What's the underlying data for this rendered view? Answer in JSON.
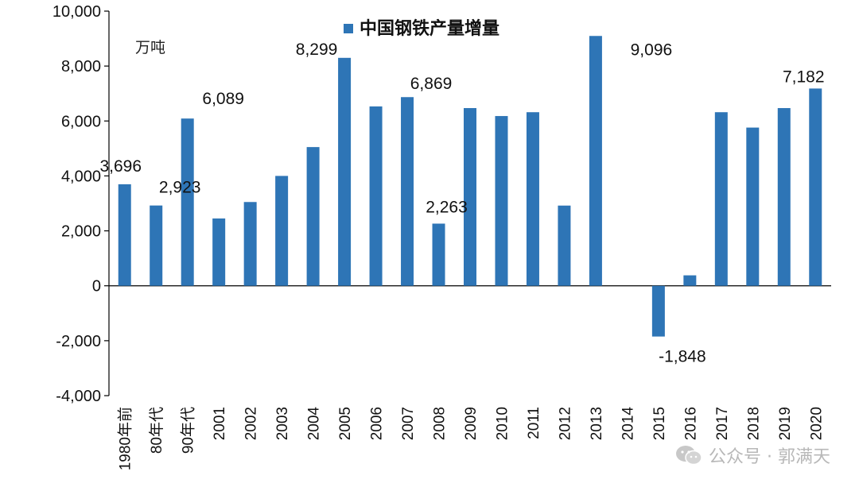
{
  "chart_data": {
    "type": "bar",
    "title": "",
    "xlabel": "",
    "ylabel": "",
    "unit_label": "万吨",
    "ylim": [
      -4000,
      10000
    ],
    "yticks": [
      -4000,
      -2000,
      0,
      2000,
      4000,
      6000,
      8000,
      10000
    ],
    "ytick_labels": [
      "-4,000",
      "-2,000",
      "0",
      "2,000",
      "4,000",
      "6,000",
      "8,000",
      "10,000"
    ],
    "categories": [
      "1980年前",
      "80年代",
      "90年代",
      "2001",
      "2002",
      "2003",
      "2004",
      "2005",
      "2006",
      "2007",
      "2008",
      "2009",
      "2010",
      "2011",
      "2012",
      "2013",
      "2014",
      "2015",
      "2016",
      "2017",
      "2018",
      "2019",
      "2020"
    ],
    "series": [
      {
        "name": "中国钢铁产量增量",
        "color": "#2e75b6",
        "values": [
          3696,
          2923,
          6089,
          2450,
          3050,
          4000,
          5050,
          8299,
          6530,
          6869,
          2263,
          6470,
          6180,
          6320,
          2920,
          9096,
          0,
          -1848,
          380,
          6320,
          5760,
          6470,
          7182
        ]
      }
    ],
    "data_labels": [
      {
        "category": "1980年前",
        "text": "3,696"
      },
      {
        "category": "80年代",
        "text": "2,923"
      },
      {
        "category": "90年代",
        "text": "6,089"
      },
      {
        "category": "2005",
        "text": "8,299"
      },
      {
        "category": "2007",
        "text": "6,869"
      },
      {
        "category": "2008",
        "text": "2,263"
      },
      {
        "category": "2013",
        "text": "9,096"
      },
      {
        "category": "2015",
        "text": "-1,848"
      },
      {
        "category": "2020",
        "text": "7,182"
      }
    ],
    "legend_position": "top-center",
    "grid": false
  },
  "watermark": {
    "icon": "wechat-icon",
    "text": "公众号 · 郭满天",
    "color": "#b8b8b8"
  }
}
